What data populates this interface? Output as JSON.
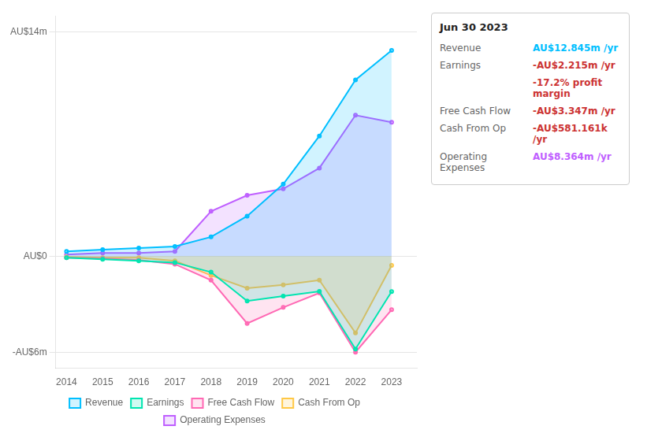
{
  "chart_data": {
    "type": "line",
    "title": "Jun 30 2023",
    "x": [
      2014,
      2015,
      2016,
      2017,
      2018,
      2019,
      2020,
      2021,
      2022,
      2023
    ],
    "series": [
      {
        "name": "Revenue",
        "color": "#00bfff",
        "values": [
          0.3,
          0.4,
          0.5,
          0.6,
          1.2,
          2.5,
          4.5,
          7.5,
          11.0,
          12.845
        ]
      },
      {
        "name": "Earnings",
        "color": "#00e5b0",
        "values": [
          -0.1,
          -0.2,
          -0.3,
          -0.4,
          -1.0,
          -2.8,
          -2.5,
          -2.2,
          -5.8,
          -2.215
        ]
      },
      {
        "name": "Free Cash Flow",
        "color": "#ff69b4",
        "values": [
          -0.1,
          -0.15,
          -0.25,
          -0.5,
          -1.5,
          -4.2,
          -3.2,
          -2.3,
          -6.0,
          -3.347
        ]
      },
      {
        "name": "Cash From Op",
        "color": "#ffc845",
        "values": [
          -0.05,
          -0.1,
          -0.1,
          -0.3,
          -1.2,
          -2.0,
          -1.8,
          -1.5,
          -4.8,
          -0.581
        ]
      },
      {
        "name": "Operating Expenses",
        "color": "#bf5fff",
        "values": [
          0.1,
          0.2,
          0.2,
          0.3,
          2.8,
          3.8,
          4.2,
          5.5,
          8.8,
          8.364
        ]
      }
    ],
    "xlim": [
      2013.7,
      2023.7
    ],
    "xticks": [
      2014,
      2015,
      2016,
      2017,
      2018,
      2019,
      2020,
      2021,
      2022,
      2023
    ],
    "ylim": [
      -7,
      15
    ],
    "yticks": [
      {
        "value": -6,
        "label": "-AU$6m"
      },
      {
        "value": 0,
        "label": "AU$0"
      },
      {
        "value": 14,
        "label": "AU$14m"
      }
    ],
    "grid": true,
    "legend": "bottom",
    "annotations": [
      {
        "label": "Revenue",
        "text": "AU$12.845m /yr",
        "color": "#00bfff"
      },
      {
        "label": "Earnings",
        "text": "-AU$2.215m /yr",
        "color": "#cc3333"
      },
      {
        "text": "-17.2% profit margin",
        "color": "#cc3333"
      },
      {
        "label": "Free Cash Flow",
        "text": "-AU$3.347m /yr",
        "color": "#cc3333"
      },
      {
        "label": "Cash From Op",
        "text": "-AU$581.161k /yr",
        "color": "#cc3333"
      },
      {
        "label": "Operating Expenses",
        "text": "AU$8.364m /yr",
        "color": "#bf5fff"
      }
    ]
  }
}
